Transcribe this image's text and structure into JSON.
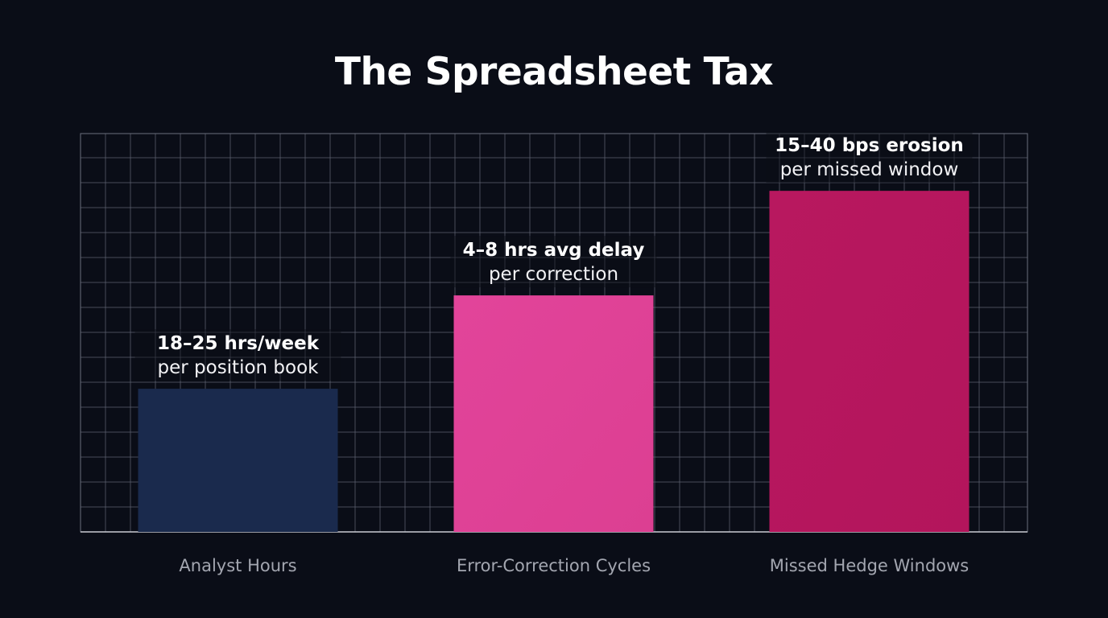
{
  "chart_data": {
    "type": "bar",
    "title": "The Spreadsheet Tax",
    "categories": [
      "Analyst Hours",
      "Error-Correction Cycles",
      "Missed Hedge Windows"
    ],
    "values": [
      5.75,
      9.5,
      13.7
    ],
    "ylim": [
      0,
      16
    ],
    "grid": true,
    "colors": [
      "#1a2a4d",
      "#e04297",
      "#b8175f"
    ],
    "data_labels": [
      {
        "bold": "18–25 hrs/week",
        "sub": "per position book"
      },
      {
        "bold": "4–8 hrs avg delay",
        "sub": "per correction"
      },
      {
        "bold": "15–40 bps erosion",
        "sub": "per missed window"
      }
    ]
  }
}
